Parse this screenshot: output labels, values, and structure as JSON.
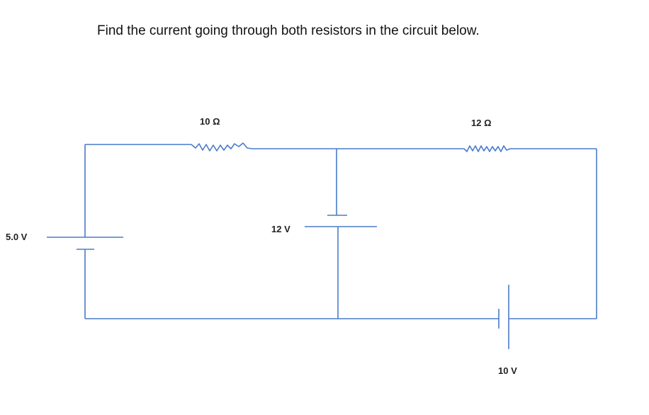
{
  "question": "Find the current going through both resistors in the circuit below.",
  "components": {
    "resistor_1": {
      "label": "10 Ω"
    },
    "resistor_2": {
      "label": "12 Ω"
    },
    "battery_1": {
      "label": "5.0 V"
    },
    "battery_2": {
      "label": "12 V"
    },
    "battery_3": {
      "label": "10 V"
    }
  },
  "colors": {
    "wire": "#4a7bc8",
    "text": "#111111"
  }
}
